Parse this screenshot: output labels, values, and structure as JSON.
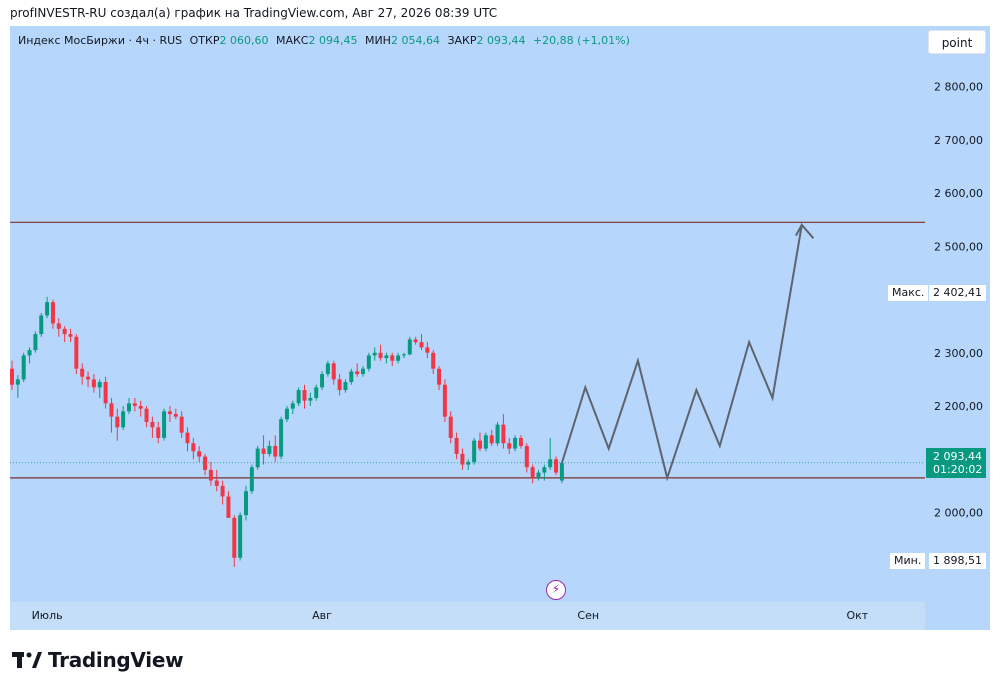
{
  "caption": "profINVESTR-RU создал(а) график на TradingView.com, Авг 27, 2026 08:39 UTC",
  "legend": {
    "symbol": "Индекс МосБиржи · 4ч · RUS",
    "open_label": "ОТКР",
    "open_value": "2 060,60",
    "high_label": "МАКС",
    "high_value": "2 094,45",
    "low_label": "МИН",
    "low_value": "2 054,64",
    "close_label": "ЗАКР",
    "close_value": "2 093,44",
    "change": "+20,88 (+1,01%)"
  },
  "toolbar": {
    "point_label": "point"
  },
  "badges": {
    "last_price": "2 093,44",
    "countdown": "01:20:02",
    "max_label": "Макс.",
    "max_value": "2 402,41",
    "min_label": "Мин.",
    "min_value": "1 898,51"
  },
  "brand": {
    "name": "TradingView"
  },
  "colors": {
    "up": "#089981",
    "down": "#f23645",
    "background": "#b6d7fb",
    "level_line": "#7a2e2e",
    "projection": "#5d6470"
  },
  "icons": {
    "flash": "lightning-icon",
    "logo": "tradingview-logo-icon"
  },
  "chart_data": {
    "type": "candlestick",
    "y_ticks": [
      {
        "value": 2800,
        "label": "2 800,00"
      },
      {
        "value": 2700,
        "label": "2 700,00"
      },
      {
        "value": 2600,
        "label": "2 600,00"
      },
      {
        "value": 2500,
        "label": "2 500,00"
      },
      {
        "value": 2300,
        "label": "2 300,00"
      },
      {
        "value": 2200,
        "label": "2 200,00"
      },
      {
        "value": 2000,
        "label": "2 000,00"
      }
    ],
    "x_ticks": [
      {
        "index": 6,
        "label": "Июль"
      },
      {
        "index": 53,
        "label": "Авг"
      },
      {
        "index": 98.5,
        "label": "Сен"
      },
      {
        "index": 144.5,
        "label": "Окт"
      }
    ],
    "levels": [
      2545,
      2065
    ],
    "last_close": 2093.44,
    "candles": [
      [
        2270,
        2285,
        2230,
        2240
      ],
      [
        2240,
        2258,
        2215,
        2250
      ],
      [
        2250,
        2300,
        2245,
        2295
      ],
      [
        2295,
        2310,
        2280,
        2305
      ],
      [
        2305,
        2340,
        2300,
        2335
      ],
      [
        2335,
        2375,
        2330,
        2370
      ],
      [
        2370,
        2405,
        2365,
        2395
      ],
      [
        2395,
        2400,
        2345,
        2355
      ],
      [
        2355,
        2365,
        2330,
        2345
      ],
      [
        2345,
        2350,
        2320,
        2335
      ],
      [
        2335,
        2345,
        2320,
        2330
      ],
      [
        2330,
        2335,
        2260,
        2270
      ],
      [
        2270,
        2280,
        2240,
        2255
      ],
      [
        2255,
        2265,
        2235,
        2250
      ],
      [
        2250,
        2260,
        2225,
        2235
      ],
      [
        2235,
        2250,
        2215,
        2245
      ],
      [
        2245,
        2255,
        2195,
        2205
      ],
      [
        2205,
        2215,
        2150,
        2180
      ],
      [
        2180,
        2195,
        2135,
        2160
      ],
      [
        2160,
        2200,
        2155,
        2190
      ],
      [
        2190,
        2215,
        2185,
        2205
      ],
      [
        2205,
        2215,
        2190,
        2200
      ],
      [
        2200,
        2210,
        2180,
        2195
      ],
      [
        2195,
        2200,
        2160,
        2170
      ],
      [
        2170,
        2180,
        2140,
        2160
      ],
      [
        2160,
        2170,
        2130,
        2140
      ],
      [
        2140,
        2195,
        2135,
        2190
      ],
      [
        2190,
        2200,
        2170,
        2185
      ],
      [
        2185,
        2195,
        2175,
        2180
      ],
      [
        2180,
        2190,
        2140,
        2150
      ],
      [
        2150,
        2160,
        2115,
        2130
      ],
      [
        2130,
        2140,
        2100,
        2115
      ],
      [
        2115,
        2125,
        2095,
        2105
      ],
      [
        2105,
        2110,
        2070,
        2080
      ],
      [
        2080,
        2095,
        2050,
        2060
      ],
      [
        2060,
        2080,
        2040,
        2050
      ],
      [
        2050,
        2060,
        2015,
        2030
      ],
      [
        2030,
        2040,
        1990,
        1990
      ],
      [
        1990,
        1995,
        1898,
        1915
      ],
      [
        1915,
        2000,
        1910,
        1995
      ],
      [
        1995,
        2050,
        1985,
        2040
      ],
      [
        2040,
        2090,
        2035,
        2085
      ],
      [
        2085,
        2125,
        2080,
        2120
      ],
      [
        2120,
        2145,
        2090,
        2110
      ],
      [
        2110,
        2135,
        2105,
        2125
      ],
      [
        2125,
        2145,
        2095,
        2105
      ],
      [
        2105,
        2180,
        2100,
        2175
      ],
      [
        2175,
        2200,
        2170,
        2195
      ],
      [
        2195,
        2210,
        2185,
        2205
      ],
      [
        2205,
        2235,
        2200,
        2230
      ],
      [
        2230,
        2240,
        2195,
        2210
      ],
      [
        2210,
        2225,
        2200,
        2215
      ],
      [
        2215,
        2240,
        2210,
        2235
      ],
      [
        2235,
        2265,
        2230,
        2260
      ],
      [
        2260,
        2285,
        2255,
        2280
      ],
      [
        2280,
        2285,
        2240,
        2250
      ],
      [
        2250,
        2260,
        2220,
        2230
      ],
      [
        2230,
        2250,
        2225,
        2245
      ],
      [
        2245,
        2270,
        2240,
        2265
      ],
      [
        2265,
        2280,
        2255,
        2260
      ],
      [
        2260,
        2275,
        2255,
        2270
      ],
      [
        2270,
        2300,
        2265,
        2295
      ],
      [
        2295,
        2310,
        2285,
        2300
      ],
      [
        2300,
        2315,
        2285,
        2290
      ],
      [
        2290,
        2300,
        2280,
        2295
      ],
      [
        2295,
        2300,
        2275,
        2285
      ],
      [
        2285,
        2300,
        2280,
        2295
      ],
      [
        2295,
        2300,
        2290,
        2297
      ],
      [
        2297,
        2330,
        2295,
        2325
      ],
      [
        2325,
        2330,
        2315,
        2320
      ],
      [
        2320,
        2335,
        2305,
        2310
      ],
      [
        2310,
        2320,
        2290,
        2300
      ],
      [
        2300,
        2305,
        2260,
        2270
      ],
      [
        2270,
        2275,
        2230,
        2240
      ],
      [
        2240,
        2250,
        2170,
        2180
      ],
      [
        2180,
        2190,
        2130,
        2140
      ],
      [
        2140,
        2150,
        2100,
        2110
      ],
      [
        2110,
        2120,
        2080,
        2090
      ],
      [
        2090,
        2100,
        2080,
        2095
      ],
      [
        2095,
        2140,
        2090,
        2135
      ],
      [
        2135,
        2150,
        2115,
        2120
      ],
      [
        2120,
        2150,
        2115,
        2145
      ],
      [
        2145,
        2155,
        2125,
        2130
      ],
      [
        2130,
        2170,
        2125,
        2165
      ],
      [
        2165,
        2185,
        2120,
        2130
      ],
      [
        2130,
        2140,
        2110,
        2120
      ],
      [
        2120,
        2145,
        2115,
        2140
      ],
      [
        2140,
        2145,
        2120,
        2125
      ],
      [
        2125,
        2130,
        2075,
        2085
      ],
      [
        2085,
        2090,
        2055,
        2065
      ],
      [
        2065,
        2080,
        2060,
        2075
      ],
      [
        2075,
        2090,
        2060,
        2085
      ],
      [
        2085,
        2140,
        2080,
        2100
      ],
      [
        2100,
        2105,
        2070,
        2075
      ],
      [
        2060,
        2095,
        2055,
        2093
      ]
    ],
    "projection": [
      [
        94,
        2093
      ],
      [
        98,
        2235
      ],
      [
        102,
        2120
      ],
      [
        107,
        2285
      ],
      [
        112,
        2065
      ],
      [
        117,
        2230
      ],
      [
        121,
        2125
      ],
      [
        126,
        2320
      ],
      [
        130,
        2215
      ],
      [
        135,
        2540
      ],
      [
        137,
        2515
      ],
      [
        135,
        2540
      ],
      [
        134,
        2520
      ]
    ]
  }
}
